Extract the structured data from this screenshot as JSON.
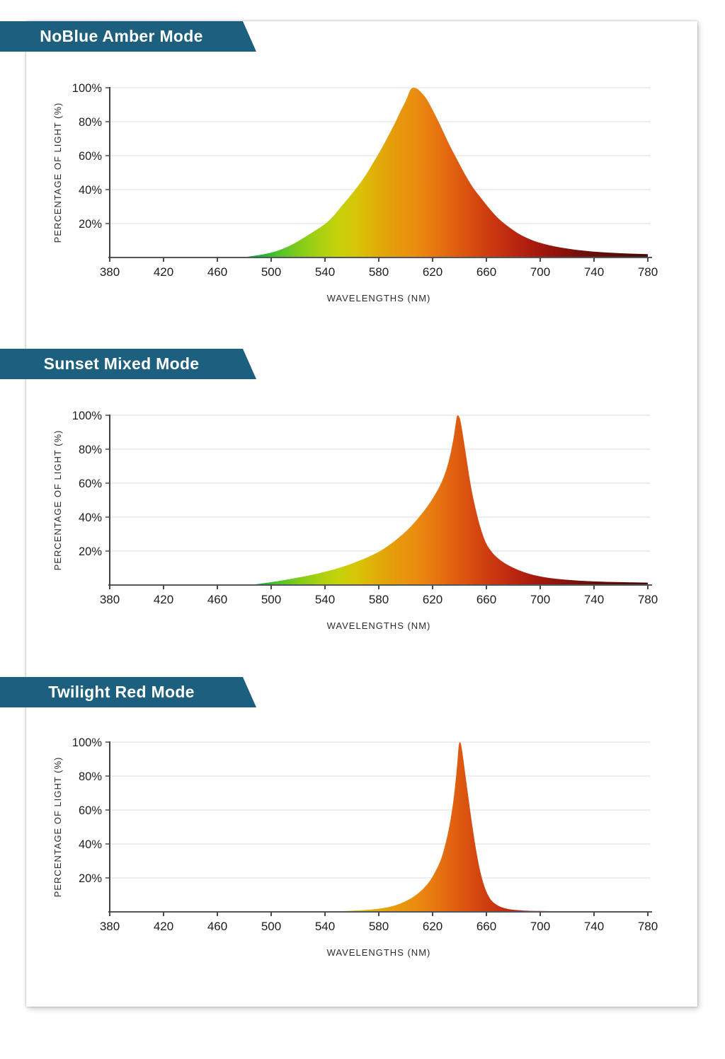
{
  "page": {
    "background": "#ffffff",
    "card_color": "#ffffff"
  },
  "banner": {
    "color": "#1d5f7e",
    "text_color": "#ffffff"
  },
  "sections": [
    {
      "title": "NoBlue Amber Mode"
    },
    {
      "title": "Sunset Mixed Mode"
    },
    {
      "title": "Twilight Red Mode"
    }
  ],
  "spectrum": {
    "note": "fill gradient mapped to wavelength (nm)",
    "stops": [
      [
        380,
        "#009e60"
      ],
      [
        480,
        "#009e60"
      ],
      [
        492,
        "#16b33c"
      ],
      [
        505,
        "#4fc32a"
      ],
      [
        520,
        "#7fcb1b"
      ],
      [
        535,
        "#a7d011"
      ],
      [
        550,
        "#c6d20a"
      ],
      [
        565,
        "#d9c307"
      ],
      [
        578,
        "#e0ad07"
      ],
      [
        592,
        "#e69b0b"
      ],
      [
        606,
        "#ea8e10"
      ],
      [
        620,
        "#e87a10"
      ],
      [
        635,
        "#e16110"
      ],
      [
        650,
        "#d74b10"
      ],
      [
        665,
        "#ca3710"
      ],
      [
        680,
        "#bb2710"
      ],
      [
        695,
        "#a81b0e"
      ],
      [
        710,
        "#93150c"
      ],
      [
        730,
        "#75100a"
      ],
      [
        750,
        "#5d0e09"
      ],
      [
        765,
        "#500d08"
      ],
      [
        780,
        "#470c07"
      ]
    ]
  },
  "axis_style": {
    "grid_color": "#e3e3e5",
    "x_axis_color": "#55565a",
    "y_axis_color": "#3f3f41",
    "tick_color": "#4a4a4c",
    "tick_label_color": "#1d1d1f",
    "axis_title_color": "#2c2c2e"
  },
  "chart_data": [
    {
      "type": "area",
      "title": "NoBlue Amber Mode",
      "xlabel": "WAVELENGTHS (NM)",
      "ylabel": "PERCENTAGE OF LIGHT (%)",
      "xlim": [
        380,
        780
      ],
      "ylim": [
        0,
        100
      ],
      "grid": "horizontal",
      "peak_nm": 606,
      "x_ticks": [
        380,
        420,
        460,
        500,
        540,
        580,
        620,
        660,
        700,
        740,
        780
      ],
      "y_ticks": [
        {
          "v": 20,
          "label": "20%"
        },
        {
          "v": 40,
          "label": "40%"
        },
        {
          "v": 60,
          "label": "60%"
        },
        {
          "v": 80,
          "label": "80%"
        },
        {
          "v": 100,
          "label": "100%"
        }
      ],
      "points": [
        [
          478,
          0
        ],
        [
          486,
          0.8
        ],
        [
          494,
          1.8
        ],
        [
          502,
          3.2
        ],
        [
          510,
          5.5
        ],
        [
          518,
          8.5
        ],
        [
          526,
          12.5
        ],
        [
          534,
          16.5
        ],
        [
          540,
          19.5
        ],
        [
          546,
          24
        ],
        [
          552,
          30
        ],
        [
          558,
          35.5
        ],
        [
          564,
          41.5
        ],
        [
          570,
          48
        ],
        [
          576,
          56
        ],
        [
          582,
          64
        ],
        [
          588,
          73
        ],
        [
          592,
          79
        ],
        [
          596,
          86
        ],
        [
          600,
          92
        ],
        [
          602,
          96
        ],
        [
          604,
          100
        ],
        [
          608,
          100
        ],
        [
          612,
          97
        ],
        [
          616,
          93
        ],
        [
          620,
          87
        ],
        [
          626,
          77.5
        ],
        [
          632,
          67
        ],
        [
          638,
          58
        ],
        [
          644,
          49
        ],
        [
          650,
          41
        ],
        [
          656,
          35
        ],
        [
          662,
          29
        ],
        [
          668,
          23.5
        ],
        [
          674,
          19.5
        ],
        [
          680,
          16
        ],
        [
          686,
          13
        ],
        [
          692,
          10.8
        ],
        [
          698,
          9
        ],
        [
          706,
          7.3
        ],
        [
          714,
          6
        ],
        [
          722,
          5
        ],
        [
          730,
          4.2
        ],
        [
          740,
          3.4
        ],
        [
          750,
          2.9
        ],
        [
          760,
          2.5
        ],
        [
          770,
          2.2
        ],
        [
          780,
          2
        ]
      ]
    },
    {
      "type": "area",
      "title": "Sunset Mixed Mode",
      "xlabel": "WAVELENGTHS (NM)",
      "ylabel": "PERCENTAGE OF LIGHT (%)",
      "xlim": [
        380,
        780
      ],
      "ylim": [
        0,
        100
      ],
      "grid": "horizontal",
      "peak_nm": 638,
      "x_ticks": [
        380,
        420,
        460,
        500,
        540,
        580,
        620,
        660,
        700,
        740,
        780
      ],
      "y_ticks": [
        {
          "v": 20,
          "label": "20%"
        },
        {
          "v": 40,
          "label": "40%"
        },
        {
          "v": 60,
          "label": "60%"
        },
        {
          "v": 80,
          "label": "80%"
        },
        {
          "v": 100,
          "label": "100%"
        }
      ],
      "points": [
        [
          484,
          0
        ],
        [
          490,
          0.6
        ],
        [
          496,
          1.2
        ],
        [
          502,
          1.9
        ],
        [
          508,
          2.7
        ],
        [
          514,
          3.5
        ],
        [
          520,
          4.4
        ],
        [
          526,
          5.3
        ],
        [
          532,
          6.3
        ],
        [
          538,
          7.4
        ],
        [
          544,
          8.6
        ],
        [
          550,
          10
        ],
        [
          556,
          11.5
        ],
        [
          562,
          13.2
        ],
        [
          568,
          15.1
        ],
        [
          574,
          17.2
        ],
        [
          580,
          19.5
        ],
        [
          586,
          22.5
        ],
        [
          592,
          26
        ],
        [
          598,
          30
        ],
        [
          604,
          34.5
        ],
        [
          610,
          40
        ],
        [
          616,
          46
        ],
        [
          621,
          52
        ],
        [
          626,
          59
        ],
        [
          630,
          67
        ],
        [
          633,
          76
        ],
        [
          635.5,
          86
        ],
        [
          637,
          94
        ],
        [
          638,
          100
        ],
        [
          639.5,
          100
        ],
        [
          641,
          96
        ],
        [
          643,
          86
        ],
        [
          645.5,
          73
        ],
        [
          648,
          60
        ],
        [
          651,
          48
        ],
        [
          654,
          38
        ],
        [
          657,
          30
        ],
        [
          660,
          24
        ],
        [
          663,
          20.5
        ],
        [
          666,
          17.5
        ],
        [
          672,
          13.5
        ],
        [
          680,
          10
        ],
        [
          688,
          7.5
        ],
        [
          696,
          5.6
        ],
        [
          706,
          4.2
        ],
        [
          716,
          3.3
        ],
        [
          728,
          2.6
        ],
        [
          740,
          2.1
        ],
        [
          752,
          1.8
        ],
        [
          766,
          1.6
        ],
        [
          780,
          1.4
        ]
      ]
    },
    {
      "type": "area",
      "title": "Twilight Red Mode",
      "xlabel": "WAVELENGTHS (NM)",
      "ylabel": "PERCENTAGE OF LIGHT (%)",
      "xlim": [
        380,
        780
      ],
      "ylim": [
        0,
        100
      ],
      "grid": "horizontal",
      "peak_nm": 640,
      "x_ticks": [
        380,
        420,
        460,
        500,
        540,
        580,
        620,
        660,
        700,
        740,
        780
      ],
      "y_ticks": [
        {
          "v": 20,
          "label": "20%"
        },
        {
          "v": 40,
          "label": "40%"
        },
        {
          "v": 60,
          "label": "60%"
        },
        {
          "v": 80,
          "label": "80%"
        },
        {
          "v": 100,
          "label": "100%"
        }
      ],
      "points": [
        [
          540,
          0
        ],
        [
          552,
          0.4
        ],
        [
          564,
          0.8
        ],
        [
          574,
          1.3
        ],
        [
          582,
          2
        ],
        [
          590,
          3.2
        ],
        [
          596,
          4.8
        ],
        [
          602,
          7
        ],
        [
          608,
          10
        ],
        [
          613,
          13.5
        ],
        [
          618,
          18
        ],
        [
          622,
          23.5
        ],
        [
          626,
          30
        ],
        [
          629,
          38
        ],
        [
          632,
          48
        ],
        [
          635,
          62
        ],
        [
          637,
          76
        ],
        [
          638.5,
          88
        ],
        [
          639.5,
          100
        ],
        [
          641,
          100
        ],
        [
          642.5,
          92
        ],
        [
          644.5,
          80
        ],
        [
          647,
          65
        ],
        [
          650,
          48
        ],
        [
          653,
          33
        ],
        [
          656,
          21.5
        ],
        [
          659,
          13.5
        ],
        [
          662,
          8.5
        ],
        [
          665,
          5.5
        ],
        [
          669,
          3.4
        ],
        [
          673,
          2.2
        ],
        [
          678,
          1.4
        ],
        [
          684,
          0.9
        ],
        [
          692,
          0.6
        ],
        [
          702,
          0.45
        ],
        [
          715,
          0.35
        ],
        [
          735,
          0.3
        ],
        [
          760,
          0.25
        ],
        [
          780,
          0.2
        ]
      ]
    }
  ]
}
